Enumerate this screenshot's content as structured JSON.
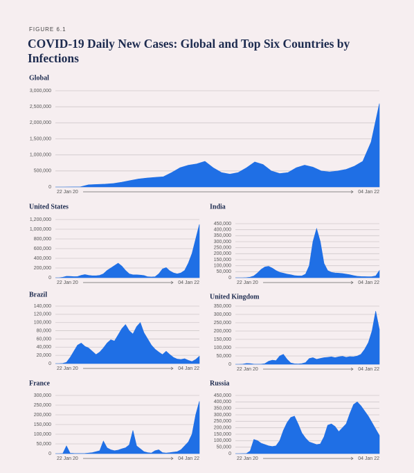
{
  "figure_label": "FIGURE 6.1",
  "title": "COVID-19 Daily New Cases: Global and Top Six Countries by Infections",
  "chart_data": [
    {
      "type": "area",
      "title": "Global",
      "color": "#1f6fe5",
      "grid": true,
      "categories": [
        "22 Jan 20",
        null,
        null,
        null,
        null,
        null,
        null,
        null,
        null,
        null,
        null,
        null,
        null,
        null,
        null,
        null,
        null,
        null,
        null,
        null,
        null,
        null,
        null,
        null,
        null,
        null,
        null,
        null,
        null,
        null,
        null,
        null,
        null,
        null,
        null,
        null,
        null,
        null,
        null,
        "04 Jan 22"
      ],
      "values": [
        0,
        0,
        2000,
        5000,
        70000,
        80000,
        90000,
        110000,
        150000,
        200000,
        250000,
        280000,
        300000,
        320000,
        450000,
        600000,
        680000,
        720000,
        800000,
        600000,
        450000,
        400000,
        450000,
        600000,
        780000,
        700000,
        500000,
        420000,
        450000,
        600000,
        680000,
        620000,
        500000,
        470000,
        500000,
        550000,
        650000,
        800000,
        1400000,
        2600000
      ],
      "ylim": [
        0,
        3000000
      ],
      "yticks": [
        0,
        {
          "value": 500000,
          "label": "500,000"
        },
        {
          "value": 1000000,
          "label": "1,000,000"
        },
        {
          "value": 1500000,
          "label": "1,500,000"
        },
        {
          "value": 2000000,
          "label": "2,000,000"
        },
        {
          "value": 2500000,
          "label": "2,500,000"
        },
        {
          "value": 3000000,
          "label": "3,000,000"
        }
      ]
    },
    {
      "type": "area",
      "title": "United States",
      "color": "#1f6fe5",
      "grid": true,
      "categories": [
        "22 Jan 20",
        null,
        null,
        null,
        null,
        null,
        null,
        null,
        null,
        null,
        null,
        null,
        null,
        null,
        null,
        null,
        null,
        null,
        null,
        null,
        null,
        null,
        null,
        null,
        null,
        null,
        null,
        null,
        null,
        null,
        null,
        null,
        null,
        null,
        null,
        null,
        null,
        null,
        null,
        "04 Jan 22"
      ],
      "values": [
        0,
        0,
        10000,
        30000,
        28000,
        22000,
        25000,
        50000,
        65000,
        50000,
        40000,
        40000,
        50000,
        80000,
        150000,
        200000,
        250000,
        300000,
        240000,
        150000,
        80000,
        60000,
        60000,
        55000,
        45000,
        20000,
        15000,
        20000,
        80000,
        180000,
        210000,
        140000,
        100000,
        80000,
        100000,
        150000,
        300000,
        500000,
        800000,
        1100000
      ],
      "ylim": [
        0,
        1200000
      ],
      "yticks": [
        0,
        {
          "value": 200000,
          "label": "200,000"
        },
        {
          "value": 400000,
          "label": "400,000"
        },
        {
          "value": 600000,
          "label": "600,000"
        },
        {
          "value": 800000,
          "label": "800,000"
        },
        {
          "value": 1000000,
          "label": "1,000,000"
        },
        {
          "value": 1200000,
          "label": "1,200,000"
        }
      ]
    },
    {
      "type": "area",
      "title": "India",
      "color": "#1f6fe5",
      "grid": true,
      "categories": [
        "22 Jan 20",
        null,
        null,
        null,
        null,
        null,
        null,
        null,
        null,
        null,
        null,
        null,
        null,
        null,
        null,
        null,
        null,
        null,
        null,
        null,
        null,
        null,
        null,
        null,
        null,
        null,
        null,
        null,
        null,
        null,
        null,
        null,
        null,
        null,
        null,
        null,
        null,
        null,
        null,
        "04 Jan 22"
      ],
      "values": [
        0,
        0,
        0,
        1000,
        5000,
        15000,
        40000,
        70000,
        90000,
        95000,
        80000,
        60000,
        45000,
        38000,
        30000,
        25000,
        18000,
        15000,
        15000,
        30000,
        100000,
        300000,
        410000,
        300000,
        120000,
        60000,
        45000,
        40000,
        38000,
        35000,
        30000,
        25000,
        18000,
        12000,
        10000,
        9000,
        8000,
        9000,
        15000,
        60000
      ],
      "ylim": [
        0,
        450000
      ],
      "yticks": [
        0,
        {
          "value": 50000,
          "label": "50,000"
        },
        {
          "value": 100000,
          "label": "100,000"
        },
        {
          "value": 150000,
          "label": "150,000"
        },
        {
          "value": 200000,
          "label": "200,000"
        },
        {
          "value": 250000,
          "label": "250,000"
        },
        {
          "value": 300000,
          "label": "300,000"
        },
        {
          "value": 350000,
          "label": "350,000"
        },
        {
          "value": 400000,
          "label": "400,000"
        },
        {
          "value": 450000,
          "label": "450,000"
        }
      ]
    },
    {
      "type": "area",
      "title": "Brazil",
      "color": "#1f6fe5",
      "grid": true,
      "categories": [
        "22 Jan 20",
        null,
        null,
        null,
        null,
        null,
        null,
        null,
        null,
        null,
        null,
        null,
        null,
        null,
        null,
        null,
        null,
        null,
        null,
        null,
        null,
        null,
        null,
        null,
        null,
        null,
        null,
        null,
        null,
        null,
        null,
        null,
        null,
        null,
        null,
        null,
        null,
        null,
        null,
        "04 Jan 22"
      ],
      "values": [
        0,
        0,
        500,
        3000,
        15000,
        30000,
        45000,
        50000,
        42000,
        38000,
        30000,
        22000,
        28000,
        38000,
        50000,
        58000,
        55000,
        70000,
        85000,
        95000,
        80000,
        72000,
        90000,
        100000,
        75000,
        60000,
        45000,
        35000,
        28000,
        22000,
        30000,
        22000,
        15000,
        11000,
        10000,
        12000,
        8000,
        5000,
        10000,
        18000
      ],
      "ylim": [
        0,
        140000
      ],
      "yticks": [
        0,
        {
          "value": 20000,
          "label": "20,000"
        },
        {
          "value": 40000,
          "label": "40,000"
        },
        {
          "value": 60000,
          "label": "60,000"
        },
        {
          "value": 80000,
          "label": "80,000"
        },
        {
          "value": 100000,
          "label": "100,000"
        },
        {
          "value": 120000,
          "label": "120,000"
        },
        {
          "value": 140000,
          "label": "140,000"
        }
      ]
    },
    {
      "type": "area",
      "title": "United Kingdom",
      "color": "#1f6fe5",
      "grid": true,
      "categories": [
        "22 Jan 20",
        null,
        null,
        null,
        null,
        null,
        null,
        null,
        null,
        null,
        null,
        null,
        null,
        null,
        null,
        null,
        null,
        null,
        null,
        null,
        null,
        null,
        null,
        null,
        null,
        null,
        null,
        null,
        null,
        null,
        null,
        null,
        null,
        null,
        null,
        null,
        null,
        null,
        null,
        "04 Jan 22"
      ],
      "values": [
        0,
        0,
        1000,
        5000,
        4000,
        1000,
        500,
        1000,
        4000,
        18000,
        25000,
        22000,
        50000,
        60000,
        30000,
        8000,
        3000,
        2000,
        4000,
        10000,
        35000,
        40000,
        30000,
        35000,
        40000,
        42000,
        45000,
        40000,
        45000,
        48000,
        42000,
        46000,
        45000,
        50000,
        60000,
        90000,
        130000,
        200000,
        320000,
        210000
      ],
      "ylim": [
        0,
        350000
      ],
      "yticks": [
        0,
        {
          "value": 50000,
          "label": "50,000"
        },
        {
          "value": 100000,
          "label": "100,000"
        },
        {
          "value": 150000,
          "label": "150,000"
        },
        {
          "value": 200000,
          "label": "200,000"
        },
        {
          "value": 250000,
          "label": "250,000"
        },
        {
          "value": 300000,
          "label": "300,000"
        },
        {
          "value": 350000,
          "label": "350,000"
        }
      ]
    },
    {
      "type": "area",
      "title": "France",
      "color": "#1f6fe5",
      "grid": true,
      "categories": [
        "22 Jan 20",
        null,
        null,
        null,
        null,
        null,
        null,
        null,
        null,
        null,
        null,
        null,
        null,
        null,
        null,
        null,
        null,
        null,
        null,
        null,
        null,
        null,
        null,
        null,
        null,
        null,
        null,
        null,
        null,
        null,
        null,
        null,
        null,
        null,
        null,
        null,
        null,
        null,
        null,
        "04 Jan 22"
      ],
      "values": [
        0,
        0,
        500,
        40000,
        2000,
        1000,
        500,
        500,
        1000,
        3000,
        5000,
        10000,
        15000,
        65000,
        30000,
        20000,
        15000,
        18000,
        25000,
        30000,
        45000,
        120000,
        40000,
        25000,
        10000,
        5000,
        3000,
        15000,
        20000,
        5000,
        3000,
        5000,
        8000,
        10000,
        20000,
        40000,
        60000,
        100000,
        200000,
        270000
      ],
      "ylim": [
        0,
        300000
      ],
      "yticks": [
        0,
        {
          "value": 50000,
          "label": "50,000"
        },
        {
          "value": 100000,
          "label": "100,000"
        },
        {
          "value": 150000,
          "label": "150,000"
        },
        {
          "value": 200000,
          "label": "200,000"
        },
        {
          "value": 250000,
          "label": "250,000"
        },
        {
          "value": 300000,
          "label": "300,000"
        }
      ]
    },
    {
      "type": "area",
      "title": "Russia",
      "color": "#1f6fe5",
      "grid": true,
      "categories": [
        "22 Jan 20",
        null,
        null,
        null,
        null,
        null,
        null,
        null,
        null,
        null,
        null,
        null,
        null,
        null,
        null,
        null,
        null,
        null,
        null,
        null,
        null,
        null,
        null,
        null,
        null,
        null,
        null,
        null,
        null,
        null,
        null,
        null,
        null,
        null,
        null,
        null,
        null,
        null,
        null,
        "04 Jan 22"
      ],
      "values": [
        0,
        0,
        500,
        1000,
        20000,
        110000,
        100000,
        80000,
        70000,
        60000,
        55000,
        60000,
        100000,
        180000,
        240000,
        280000,
        290000,
        230000,
        160000,
        120000,
        90000,
        80000,
        70000,
        75000,
        130000,
        220000,
        230000,
        210000,
        170000,
        200000,
        230000,
        310000,
        380000,
        400000,
        370000,
        330000,
        290000,
        240000,
        190000,
        140000
      ],
      "ylim": [
        0,
        450000
      ],
      "yticks": [
        0,
        {
          "value": 50000,
          "label": "50,000"
        },
        {
          "value": 100000,
          "label": "100,000"
        },
        {
          "value": 150000,
          "label": "150,000"
        },
        {
          "value": 200000,
          "label": "200,000"
        },
        {
          "value": 250000,
          "label": "250,000"
        },
        {
          "value": 300000,
          "label": "300,000"
        },
        {
          "value": 350000,
          "label": "350,000"
        },
        {
          "value": 400000,
          "label": "400,000"
        },
        {
          "value": 450000,
          "label": "450,000"
        }
      ]
    }
  ]
}
